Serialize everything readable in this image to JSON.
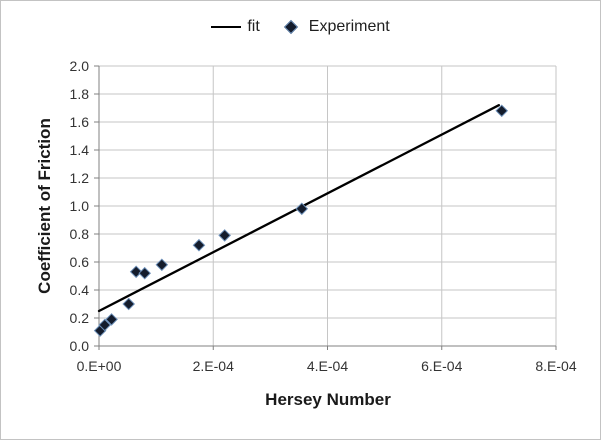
{
  "chart_data": {
    "type": "scatter",
    "title": "",
    "xlabel": "Hersey Number",
    "ylabel": "Coefficient of Friction",
    "xlim": [
      0,
      0.0008
    ],
    "ylim": [
      0,
      2.0
    ],
    "grid": true,
    "legend_position": "top-center",
    "x_ticks": [
      {
        "value": 0,
        "label": "0.E+00"
      },
      {
        "value": 0.0002,
        "label": "2.E-04"
      },
      {
        "value": 0.0004,
        "label": "4.E-04"
      },
      {
        "value": 0.0006,
        "label": "6.E-04"
      },
      {
        "value": 0.0008,
        "label": "8.E-04"
      }
    ],
    "y_ticks": [
      {
        "value": 0.0,
        "label": "0.0"
      },
      {
        "value": 0.2,
        "label": "0.2"
      },
      {
        "value": 0.4,
        "label": "0.4"
      },
      {
        "value": 0.6,
        "label": "0.6"
      },
      {
        "value": 0.8,
        "label": "0.8"
      },
      {
        "value": 1.0,
        "label": "1.0"
      },
      {
        "value": 1.2,
        "label": "1.2"
      },
      {
        "value": 1.4,
        "label": "1.4"
      },
      {
        "value": 1.6,
        "label": "1.6"
      },
      {
        "value": 1.8,
        "label": "1.8"
      },
      {
        "value": 2.0,
        "label": "2.0"
      }
    ],
    "series": [
      {
        "name": "fit",
        "type": "line",
        "color": "#000000",
        "points": [
          [
            0,
            0.25
          ],
          [
            0.0007,
            1.72
          ]
        ]
      },
      {
        "name": "Experiment",
        "type": "scatter",
        "marker": "diamond",
        "fill": "#141c2c",
        "edge": "#6c8fb8",
        "points": [
          [
            2e-06,
            0.11
          ],
          [
            1e-05,
            0.15
          ],
          [
            2.2e-05,
            0.19
          ],
          [
            5.2e-05,
            0.3
          ],
          [
            6.5e-05,
            0.53
          ],
          [
            8e-05,
            0.52
          ],
          [
            0.00011,
            0.58
          ],
          [
            0.000175,
            0.72
          ],
          [
            0.00022,
            0.79
          ],
          [
            0.000355,
            0.98
          ],
          [
            0.000705,
            1.68
          ]
        ]
      }
    ]
  },
  "colors": {
    "background": "#ffffff",
    "chart_border": "#c3c3c3",
    "gridline": "#c6c6c6",
    "axis": "#808080",
    "fit_line": "#000000",
    "marker_fill": "#141c2c",
    "marker_edge": "#6c8fb8",
    "tick_text": "#333333",
    "title_text": "#1a1a1a"
  }
}
